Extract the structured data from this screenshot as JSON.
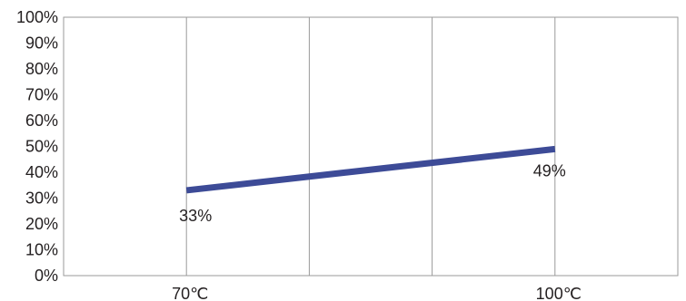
{
  "chart_data": {
    "type": "line",
    "title": "",
    "xlabel": "",
    "ylabel": "",
    "ylim": [
      0,
      100
    ],
    "y_ticks": [
      "0%",
      "10%",
      "20%",
      "30%",
      "40%",
      "50%",
      "60%",
      "70%",
      "80%",
      "90%",
      "100%"
    ],
    "x_tick_labels": [
      "70℃",
      "100℃"
    ],
    "x_gridlines": 4,
    "grid": true,
    "legend": "none",
    "series": [
      {
        "x": [
          "70℃",
          "100℃"
        ],
        "values": [
          33,
          49
        ],
        "data_labels": [
          "33%",
          "49%"
        ],
        "color": "#3d4b97"
      }
    ],
    "colors": {
      "frame": "#9a9a9a",
      "grid": "#9a9a9a",
      "text": "#231f20"
    }
  }
}
